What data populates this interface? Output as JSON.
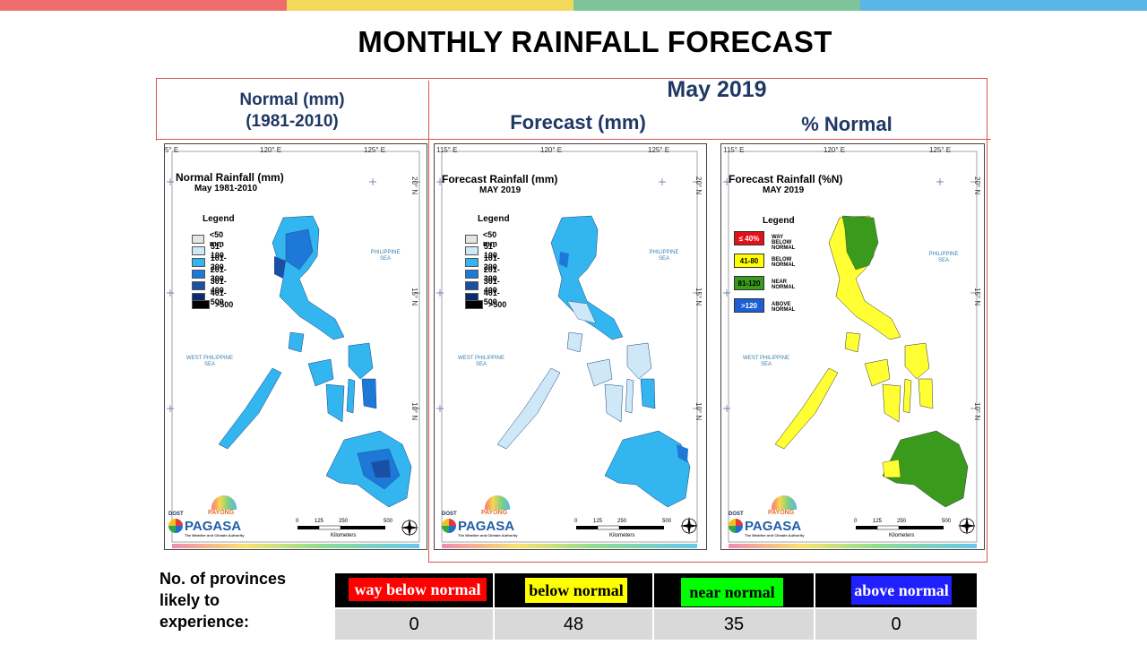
{
  "colors": {
    "bar": [
      "#ef6c6c",
      "#f2d95c",
      "#7fc39a",
      "#5ab6e6"
    ],
    "header": "#1f3864",
    "grid_line": "#d9534f"
  },
  "title": "MONTHLY RAINFALL FORECAST",
  "headers": {
    "normal_line1": "Normal (mm)",
    "normal_line2": "(1981-2010)",
    "month": "May 2019",
    "forecast": "Forecast (mm)",
    "pct_normal": "% Normal"
  },
  "coords": {
    "lon115": "115° E",
    "lon120": "120° E",
    "lon125": "125° E",
    "lon115_cut": "5° E",
    "lat20": "20° N",
    "lat15": "15° N",
    "lat10": "10° N"
  },
  "seas": {
    "philippine_line1": "PHILIPPINE",
    "philippine_line2": "SEA",
    "west_line1": "WEST PHILIPPINE",
    "west_line2": "SEA"
  },
  "scale": {
    "ticks": [
      "0",
      "125",
      "250",
      "500"
    ],
    "unit": "Kilometers"
  },
  "logo": {
    "dost": "DOST",
    "payong": "PAYONG",
    "pagasa": "PAGASA",
    "tagline": "The Weather and Climate Authority"
  },
  "panels": {
    "normal": {
      "title": "Normal Rainfall (mm)",
      "subtitle": "May 1981-2010"
    },
    "forecast": {
      "title": "Forecast Rainfall (mm)",
      "subtitle": "MAY 2019"
    },
    "pct": {
      "title": "Forecast Rainfall (%N)",
      "subtitle": "MAY 2019"
    }
  },
  "rain_legend": {
    "title": "Legend",
    "items": [
      {
        "label": "<50 mm",
        "color": "#e5e5e5"
      },
      {
        "label": "51-100",
        "color": "#cfe8f8"
      },
      {
        "label": "101-200",
        "color": "#33b5ef"
      },
      {
        "label": "201-300",
        "color": "#1e78d8"
      },
      {
        "label": "301-400",
        "color": "#1a4fa3"
      },
      {
        "label": "401-500",
        "color": "#0c2b6e"
      },
      {
        "label": ">500",
        "color": "#000000"
      }
    ]
  },
  "pct_legend": {
    "title": "Legend",
    "items": [
      {
        "swatch": "≤ 40%",
        "label": "WAY BELOW NORMAL",
        "color": "#e3111a",
        "text_color": "#ffffff"
      },
      {
        "swatch": "41-80",
        "label": "BELOW NORMAL",
        "color": "#ffff00",
        "text_color": "#000000"
      },
      {
        "swatch": "81-120",
        "label": "NEAR NORMAL",
        "color": "#3a9a1c",
        "text_color": "#000000"
      },
      {
        "swatch": ">120",
        "label": "ABOVE NORMAL",
        "color": "#1c5fd6",
        "text_color": "#ffffff"
      }
    ]
  },
  "provinces": {
    "label_line1": "No. of provinces",
    "label_line2": "likely to",
    "label_line3": "experience:",
    "categories": [
      {
        "label": "way below normal",
        "count": "0",
        "bg": "#ff0000",
        "fg": "#ffffff"
      },
      {
        "label": "below normal",
        "count": "48",
        "bg": "#ffff00",
        "fg": "#000000"
      },
      {
        "label": "near normal",
        "count": "35",
        "bg": "#00ff00",
        "fg": "#000000"
      },
      {
        "label": "above normal",
        "count": "0",
        "bg": "#2020ff",
        "fg": "#ffffff"
      }
    ]
  }
}
